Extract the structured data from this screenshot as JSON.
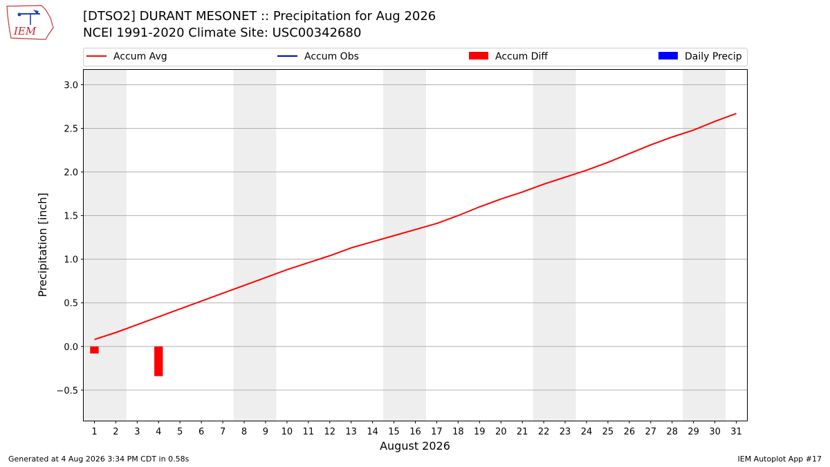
{
  "header": {
    "title_line1": "[DTSO2] DURANT MESONET :: Precipitation for Aug 2026",
    "title_line2": "NCEI 1991-2020 Climate Site: USC00342680"
  },
  "logo": {
    "text": "IEM",
    "icon": "iem-iowa-logo"
  },
  "footer": {
    "generated": "Generated at 4 Aug 2026 3:34 PM CDT in 0.58s",
    "app": "IEM Autoplot App #17"
  },
  "colors": {
    "accum_avg": "#ff0000",
    "accum_obs": "#0000cc",
    "accum_diff": "#ff0000",
    "daily_precip": "#0000ff",
    "weekend_shade": "#eeeeee",
    "grid": "#b0b0b0"
  },
  "chart_data": {
    "type": "line",
    "xlabel": "August 2026",
    "ylabel": "Precipitation [inch]",
    "ylim": [
      -0.85,
      3.17
    ],
    "y_ticks": [
      "−0.5",
      "0.0",
      "0.5",
      "1.0",
      "1.5",
      "2.0",
      "2.5",
      "3.0"
    ],
    "y_tick_values": [
      -0.5,
      0.0,
      0.5,
      1.0,
      1.5,
      2.0,
      2.5,
      3.0
    ],
    "x": [
      1,
      2,
      3,
      4,
      5,
      6,
      7,
      8,
      9,
      10,
      11,
      12,
      13,
      14,
      15,
      16,
      17,
      18,
      19,
      20,
      21,
      22,
      23,
      24,
      25,
      26,
      27,
      28,
      29,
      30,
      31
    ],
    "grid": "horizontal",
    "legend": [
      {
        "label": "Accum Avg",
        "kind": "line",
        "color": "#ff0000"
      },
      {
        "label": "Accum Obs",
        "kind": "line",
        "color": "#0000cc"
      },
      {
        "label": "Accum Diff",
        "kind": "bar",
        "color": "#ff0000"
      },
      {
        "label": "Daily Precip",
        "kind": "bar",
        "color": "#0000ff"
      }
    ],
    "legend_position": "top",
    "weekend_spans": [
      [
        1,
        2
      ],
      [
        8,
        9
      ],
      [
        15,
        16
      ],
      [
        22,
        23
      ],
      [
        29,
        30
      ]
    ],
    "series": [
      {
        "name": "Accum Avg",
        "type": "line",
        "values": [
          0.08,
          0.16,
          0.25,
          0.34,
          0.43,
          0.52,
          0.61,
          0.7,
          0.79,
          0.88,
          0.96,
          1.04,
          1.13,
          1.2,
          1.27,
          1.34,
          1.41,
          1.5,
          1.6,
          1.69,
          1.77,
          1.86,
          1.94,
          2.02,
          2.11,
          2.21,
          2.31,
          2.4,
          2.48,
          2.58,
          2.67
        ]
      },
      {
        "name": "Accum Diff",
        "type": "bar",
        "x": [
          1,
          4
        ],
        "values": [
          -0.08,
          -0.34
        ]
      }
    ]
  }
}
